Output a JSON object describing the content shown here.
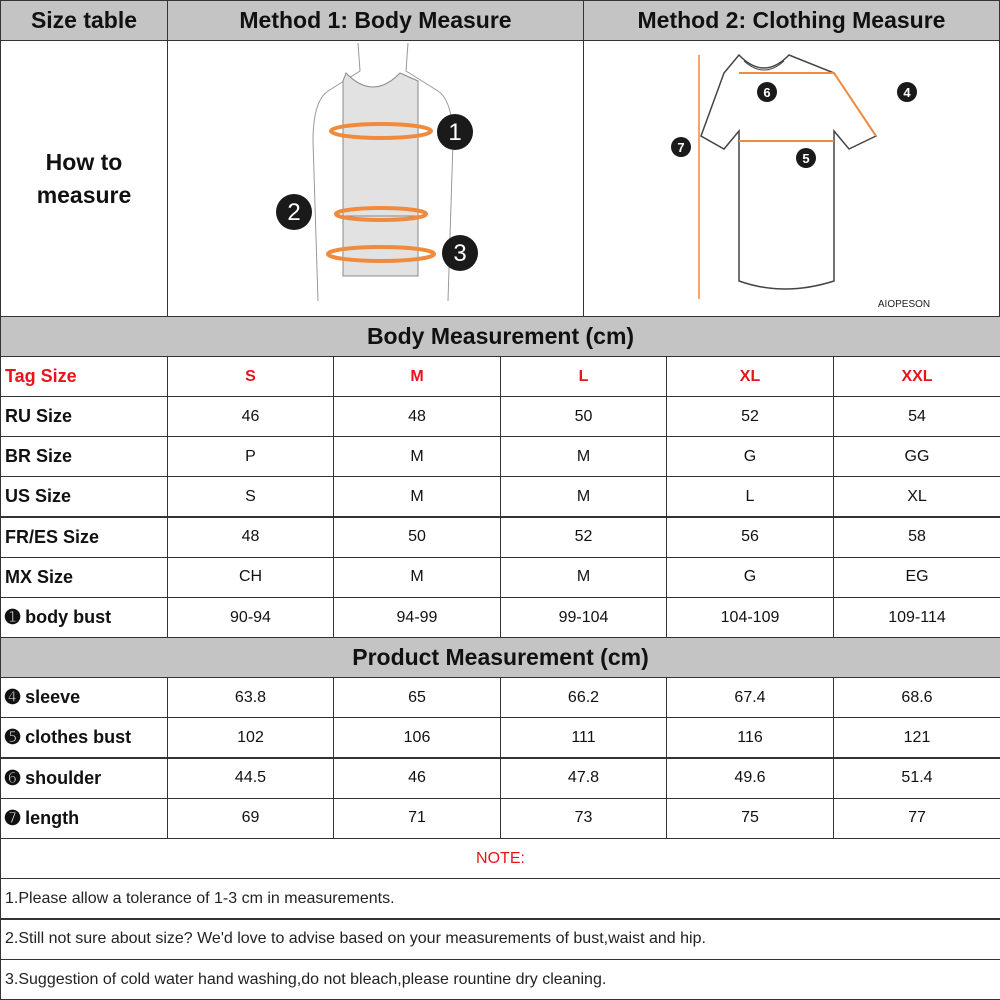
{
  "header": {
    "size_table": "Size table",
    "method1": "Method 1: Body  Measure",
    "method2": "Method 2: Clothing Measure"
  },
  "how_to": "How to\nmeasure",
  "brand_mark": "AIOPESON",
  "body_section": "Body Measurement (cm)",
  "product_section": "Product Measurement (cm)",
  "tag_row": {
    "label": "Tag Size",
    "values": [
      "S",
      "M",
      "L",
      "XL",
      "XXL"
    ]
  },
  "body_rows": [
    {
      "label": "RU Size",
      "values": [
        "46",
        "48",
        "50",
        "52",
        "54"
      ]
    },
    {
      "label": "BR Size",
      "values": [
        "P",
        "M",
        "M",
        "G",
        "GG"
      ]
    },
    {
      "label": "US Size",
      "values": [
        "S",
        "M",
        "M",
        "L",
        "XL"
      ]
    },
    {
      "label": "FR/ES Size",
      "values": [
        "48",
        "50",
        "52",
        "56",
        "58"
      ]
    },
    {
      "label": "MX Size",
      "values": [
        "CH",
        "M",
        "M",
        "G",
        "EG"
      ]
    },
    {
      "label": "➊ body bust",
      "values": [
        "90-94",
        "94-99",
        "99-104",
        "104-109",
        "109-114"
      ]
    }
  ],
  "product_rows": [
    {
      "label": "➍ sleeve",
      "values": [
        "63.8",
        "65",
        "66.2",
        "67.4",
        "68.6"
      ]
    },
    {
      "label": "➎ clothes bust",
      "values": [
        "102",
        "106",
        "111",
        "116",
        "121"
      ]
    },
    {
      "label": "➏ shoulder",
      "values": [
        "44.5",
        "46",
        "47.8",
        "49.6",
        "51.4"
      ]
    },
    {
      "label": "➐ length",
      "values": [
        "69",
        "71",
        "73",
        "75",
        "77"
      ]
    }
  ],
  "note_title": "NOTE:",
  "notes": [
    "1.Please allow a tolerance of 1-3 cm in measurements.",
    "2.Still not sure about size? We'd love to advise based on your measurements of bust,waist and hip.",
    "3.Suggestion of cold water hand washing,do not bleach,please rountine dry cleaning."
  ],
  "markers": [
    "1",
    "2",
    "3",
    "4",
    "5",
    "6",
    "7"
  ],
  "colors": {
    "header_bg": "#c4c4c4",
    "accent_red": "#e8141c",
    "measure_line": "#f08a3c"
  }
}
